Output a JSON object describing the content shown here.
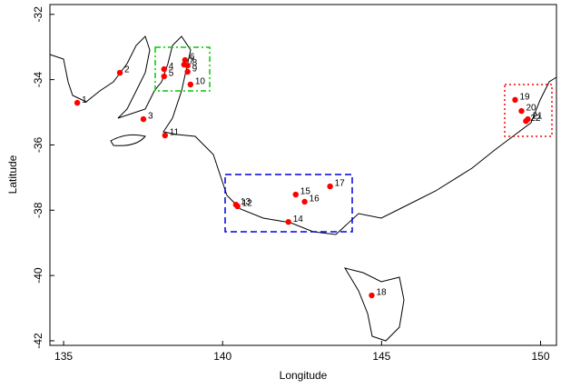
{
  "chart_data": {
    "type": "scatter",
    "xlabel": "Longitude",
    "ylabel": "Latitude",
    "xlim": [
      134.57,
      150.5
    ],
    "ylim": [
      -42.14,
      -31.7
    ],
    "xticks": [
      135,
      140,
      145,
      150
    ],
    "yticks": [
      -42,
      -40,
      -38,
      -36,
      -34,
      -32
    ],
    "color": "#ff0000",
    "labels": [
      "1",
      "2",
      "3",
      "4",
      "5",
      "6",
      "7",
      "8",
      "9",
      "10",
      "11",
      "12",
      "13",
      "14",
      "15",
      "16",
      "17",
      "18",
      "19",
      "20",
      "21",
      "22"
    ],
    "x": [
      135.43,
      136.77,
      137.51,
      138.16,
      138.16,
      138.82,
      138.79,
      138.9,
      138.9,
      138.99,
      138.19,
      140.47,
      140.42,
      142.07,
      142.3,
      142.58,
      143.38,
      144.69,
      149.2,
      149.4,
      149.6,
      149.54
    ],
    "y": [
      -34.71,
      -33.79,
      -35.21,
      -33.68,
      -33.9,
      -33.4,
      -33.54,
      -33.57,
      -33.76,
      -34.15,
      -35.71,
      -37.88,
      -37.83,
      -38.36,
      -37.52,
      -37.74,
      -37.27,
      -40.61,
      -34.62,
      -34.96,
      -35.21,
      -35.27
    ]
  }
}
